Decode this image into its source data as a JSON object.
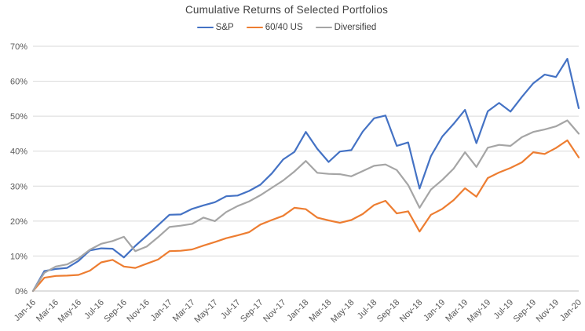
{
  "title": "Cumulative Returns of Selected Portfolios",
  "chart_data": {
    "type": "line",
    "x": [
      "Jan-16",
      "Feb-16",
      "Mar-16",
      "Apr-16",
      "May-16",
      "Jun-16",
      "Jul-16",
      "Aug-16",
      "Sep-16",
      "Oct-16",
      "Nov-16",
      "Dec-16",
      "Jan-17",
      "Feb-17",
      "Mar-17",
      "Apr-17",
      "May-17",
      "Jun-17",
      "Jul-17",
      "Aug-17",
      "Sep-17",
      "Oct-17",
      "Nov-17",
      "Dec-17",
      "Jan-18",
      "Feb-18",
      "Mar-18",
      "Apr-18",
      "May-18",
      "Jun-18",
      "Jul-18",
      "Aug-18",
      "Sep-18",
      "Oct-18",
      "Nov-18",
      "Dec-18",
      "Jan-19",
      "Feb-19",
      "Mar-19",
      "Apr-19",
      "May-19",
      "Jun-19",
      "Jul-19",
      "Aug-19",
      "Sep-19",
      "Oct-19",
      "Nov-19",
      "Dec-19",
      "Jan-20"
    ],
    "x_tick_every": 2,
    "series": [
      {
        "name": "S&P",
        "color": "#4472C4",
        "values": [
          0,
          5.7,
          6.3,
          6.6,
          8.6,
          11.6,
          12.2,
          12.1,
          9.6,
          12.9,
          15.8,
          18.8,
          21.8,
          21.9,
          23.5,
          24.5,
          25.4,
          27.1,
          27.3,
          28.6,
          30.4,
          33.6,
          37.6,
          39.8,
          45.5,
          40.7,
          36.9,
          39.9,
          40.3,
          45.6,
          49.4,
          50.2,
          41.5,
          42.5,
          29.3,
          38.6,
          44.2,
          47.8,
          51.8,
          42.3,
          51.4,
          53.8,
          51.3,
          55.5,
          59.4,
          61.9,
          61.2,
          66.4,
          52.3
        ]
      },
      {
        "name": "60/40 US",
        "color": "#ED7D31",
        "values": [
          0,
          3.8,
          4.3,
          4.4,
          4.6,
          5.8,
          8.2,
          8.9,
          7.0,
          6.6,
          7.8,
          9.0,
          11.4,
          11.5,
          11.9,
          13.0,
          14.0,
          15.1,
          15.9,
          16.8,
          19.0,
          20.3,
          21.5,
          23.8,
          23.4,
          21.0,
          20.2,
          19.5,
          20.3,
          22.0,
          24.6,
          25.8,
          22.2,
          22.8,
          17.0,
          21.8,
          23.5,
          26.0,
          29.4,
          27.0,
          32.3,
          33.9,
          35.2,
          36.8,
          39.7,
          39.2,
          40.9,
          43.1,
          38.2
        ]
      },
      {
        "name": "Diversified",
        "color": "#A5A5A5",
        "values": [
          0,
          5.2,
          7.0,
          7.6,
          9.3,
          11.8,
          13.5,
          14.3,
          15.5,
          11.4,
          12.7,
          15.4,
          18.3,
          18.7,
          19.2,
          21.0,
          20.0,
          22.6,
          24.3,
          25.6,
          27.4,
          29.5,
          31.6,
          34.2,
          37.2,
          33.8,
          33.5,
          33.4,
          32.8,
          34.3,
          35.8,
          36.2,
          34.6,
          30.3,
          23.8,
          29.0,
          31.8,
          35.0,
          39.7,
          35.5,
          41.0,
          41.8,
          41.5,
          44.0,
          45.5,
          46.2,
          47.1,
          48.8,
          45.0
        ]
      }
    ],
    "title": "Cumulative Returns of Selected Portfolios",
    "xlabel": "",
    "ylabel": "",
    "ylim": [
      0,
      70
    ],
    "y_ticks": [
      "0%",
      "10%",
      "20%",
      "30%",
      "40%",
      "50%",
      "60%",
      "70%"
    ],
    "grid": true,
    "legend_position": "top"
  },
  "colors": {
    "gridline": "#D9D9D9",
    "axis_line": "#BFBFBF",
    "tick_text": "#595959",
    "title_text": "#404040"
  }
}
